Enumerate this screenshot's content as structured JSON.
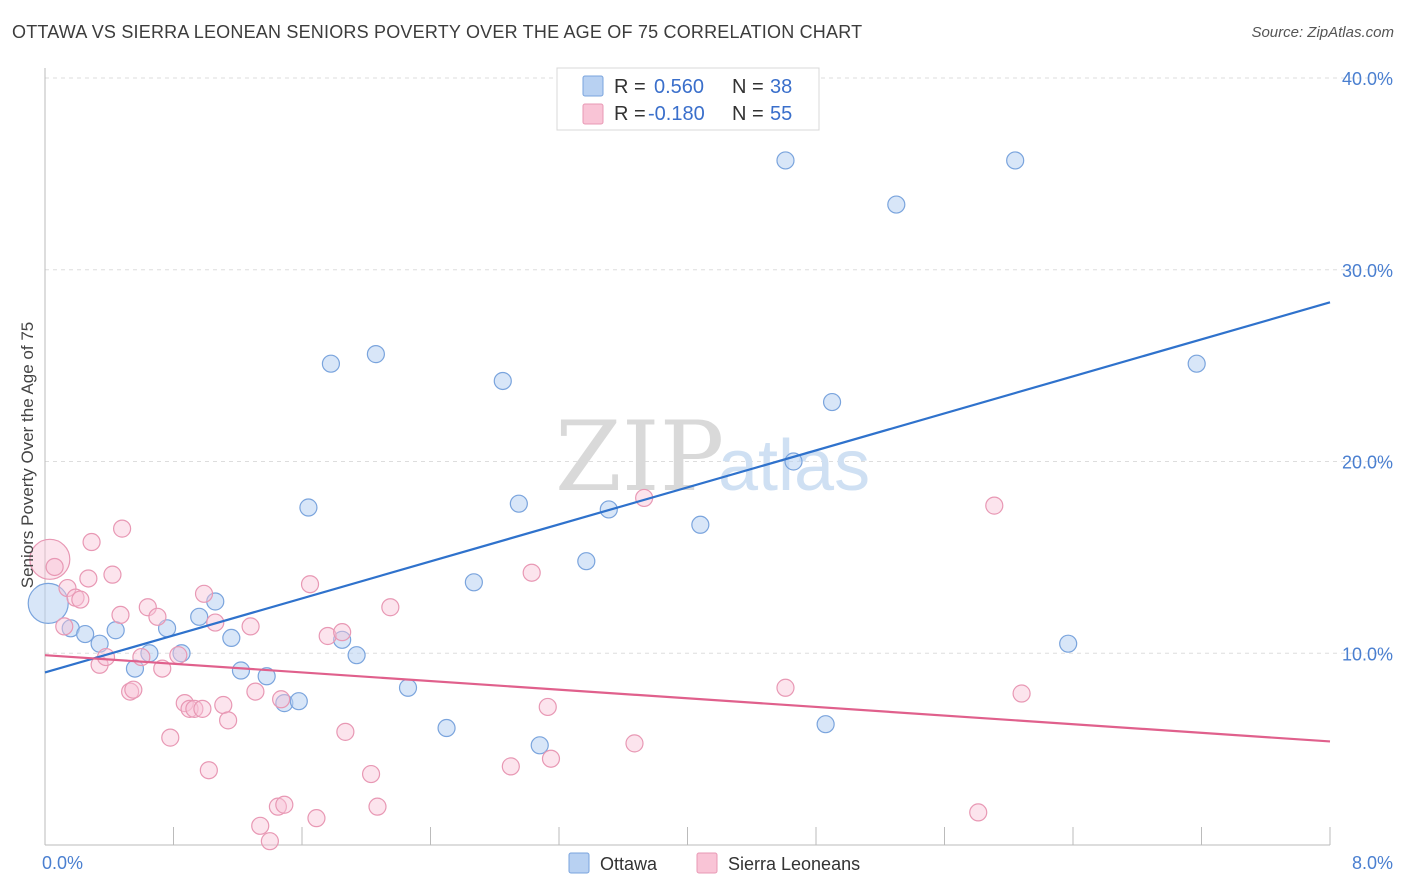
{
  "header": {
    "title": "OTTAWA VS SIERRA LEONEAN SENIORS POVERTY OVER THE AGE OF 75 CORRELATION CHART",
    "source": "Source: ZipAtlas.com"
  },
  "watermark": {
    "zip": "ZIP",
    "atlas": "atlas"
  },
  "legend": {
    "rows": [
      {
        "r_label": "R =",
        "r_value": "0.560",
        "n_label": "N =",
        "n_value": "38"
      },
      {
        "r_label": "R =",
        "r_value": "-0.180",
        "n_label": "N =",
        "n_value": "55"
      }
    ]
  },
  "bottom_legend": [
    "Ottawa",
    "Sierra Leoneans"
  ],
  "colors": {
    "ottawa_fill": "#b8d1f2",
    "ottawa_stroke": "#7aa4dd",
    "ottawa_line": "#2f72cc",
    "sierra_fill": "#f9c4d6",
    "sierra_stroke": "#e898b4",
    "sierra_line": "#e0608c",
    "grid": "#dddddd",
    "tick_text": "#4a7fd0"
  },
  "chart_data": {
    "type": "scatter",
    "title": "OTTAWA VS SIERRA LEONEAN SENIORS POVERTY OVER THE AGE OF 75 CORRELATION CHART",
    "xlabel": "",
    "ylabel": "Seniors Poverty Over the Age of 75",
    "xlim": [
      0,
      8
    ],
    "ylim": [
      0,
      40
    ],
    "x_tick_labels": [
      "0.0%",
      "8.0%"
    ],
    "y_ticks": [
      10,
      20,
      30,
      40
    ],
    "y_tick_labels": [
      "10.0%",
      "20.0%",
      "30.0%",
      "40.0%"
    ],
    "grid": true,
    "legend_position": "top-center",
    "series": [
      {
        "name": "Ottawa",
        "color": "#b8d1f2",
        "trend": {
          "x": [
            0,
            8
          ],
          "y": [
            9.0,
            28.3
          ]
        },
        "points": [
          {
            "x": 0.02,
            "y": 12.6,
            "big": true
          },
          {
            "x": 0.16,
            "y": 11.3
          },
          {
            "x": 0.25,
            "y": 11.0
          },
          {
            "x": 0.34,
            "y": 10.5
          },
          {
            "x": 0.44,
            "y": 11.2
          },
          {
            "x": 0.56,
            "y": 9.2
          },
          {
            "x": 0.65,
            "y": 10.0
          },
          {
            "x": 0.76,
            "y": 11.3
          },
          {
            "x": 0.85,
            "y": 10.0
          },
          {
            "x": 0.96,
            "y": 11.9
          },
          {
            "x": 1.06,
            "y": 12.7
          },
          {
            "x": 1.16,
            "y": 10.8
          },
          {
            "x": 1.22,
            "y": 9.1
          },
          {
            "x": 1.38,
            "y": 8.8
          },
          {
            "x": 1.49,
            "y": 7.4
          },
          {
            "x": 1.58,
            "y": 7.5
          },
          {
            "x": 1.64,
            "y": 17.6
          },
          {
            "x": 1.78,
            "y": 25.1
          },
          {
            "x": 1.85,
            "y": 10.7
          },
          {
            "x": 1.94,
            "y": 9.9
          },
          {
            "x": 2.06,
            "y": 25.6
          },
          {
            "x": 2.26,
            "y": 8.2
          },
          {
            "x": 2.5,
            "y": 6.1
          },
          {
            "x": 2.67,
            "y": 13.7
          },
          {
            "x": 2.85,
            "y": 24.2
          },
          {
            "x": 2.95,
            "y": 17.8
          },
          {
            "x": 3.08,
            "y": 5.2
          },
          {
            "x": 3.37,
            "y": 14.8
          },
          {
            "x": 3.51,
            "y": 17.5
          },
          {
            "x": 4.08,
            "y": 16.7
          },
          {
            "x": 4.61,
            "y": 35.7
          },
          {
            "x": 4.66,
            "y": 20.0
          },
          {
            "x": 4.86,
            "y": 6.3
          },
          {
            "x": 4.9,
            "y": 23.1
          },
          {
            "x": 5.3,
            "y": 33.4
          },
          {
            "x": 6.04,
            "y": 35.7
          },
          {
            "x": 6.37,
            "y": 10.5
          },
          {
            "x": 7.17,
            "y": 25.1
          }
        ]
      },
      {
        "name": "Sierra Leoneans",
        "color": "#f9c4d6",
        "trend": {
          "x": [
            0,
            8
          ],
          "y": [
            9.9,
            5.4
          ]
        },
        "points": [
          {
            "x": 0.03,
            "y": 14.9,
            "big": true
          },
          {
            "x": 0.06,
            "y": 14.5
          },
          {
            "x": 0.12,
            "y": 11.4
          },
          {
            "x": 0.14,
            "y": 13.4
          },
          {
            "x": 0.19,
            "y": 12.9
          },
          {
            "x": 0.22,
            "y": 12.8
          },
          {
            "x": 0.27,
            "y": 13.9
          },
          {
            "x": 0.29,
            "y": 15.8
          },
          {
            "x": 0.34,
            "y": 9.4
          },
          {
            "x": 0.38,
            "y": 9.8
          },
          {
            "x": 0.42,
            "y": 14.1
          },
          {
            "x": 0.47,
            "y": 12.0
          },
          {
            "x": 0.48,
            "y": 16.5
          },
          {
            "x": 0.53,
            "y": 8.0
          },
          {
            "x": 0.55,
            "y": 8.1
          },
          {
            "x": 0.6,
            "y": 9.8
          },
          {
            "x": 0.64,
            "y": 12.4
          },
          {
            "x": 0.7,
            "y": 11.9
          },
          {
            "x": 0.73,
            "y": 9.2
          },
          {
            "x": 0.78,
            "y": 5.6
          },
          {
            "x": 0.83,
            "y": 9.9
          },
          {
            "x": 0.87,
            "y": 7.4
          },
          {
            "x": 0.9,
            "y": 7.1
          },
          {
            "x": 0.93,
            "y": 7.1
          },
          {
            "x": 0.98,
            "y": 7.1
          },
          {
            "x": 0.99,
            "y": 13.1
          },
          {
            "x": 1.02,
            "y": 3.9
          },
          {
            "x": 1.06,
            "y": 11.6
          },
          {
            "x": 1.11,
            "y": 7.3
          },
          {
            "x": 1.14,
            "y": 6.5
          },
          {
            "x": 1.28,
            "y": 11.4
          },
          {
            "x": 1.31,
            "y": 8.0
          },
          {
            "x": 1.34,
            "y": 1.0
          },
          {
            "x": 1.4,
            "y": 0.2
          },
          {
            "x": 1.45,
            "y": 2.0
          },
          {
            "x": 1.47,
            "y": 7.6
          },
          {
            "x": 1.49,
            "y": 2.1
          },
          {
            "x": 1.65,
            "y": 13.6
          },
          {
            "x": 1.69,
            "y": 1.4
          },
          {
            "x": 1.76,
            "y": 10.9
          },
          {
            "x": 1.85,
            "y": 11.1
          },
          {
            "x": 1.87,
            "y": 5.9
          },
          {
            "x": 2.03,
            "y": 3.7
          },
          {
            "x": 2.07,
            "y": 2.0
          },
          {
            "x": 2.15,
            "y": 12.4
          },
          {
            "x": 2.9,
            "y": 4.1
          },
          {
            "x": 3.03,
            "y": 14.2
          },
          {
            "x": 3.13,
            "y": 7.2
          },
          {
            "x": 3.15,
            "y": 4.5
          },
          {
            "x": 3.67,
            "y": 5.3
          },
          {
            "x": 3.73,
            "y": 18.1
          },
          {
            "x": 4.61,
            "y": 8.2
          },
          {
            "x": 5.81,
            "y": 1.7
          },
          {
            "x": 5.91,
            "y": 17.7
          },
          {
            "x": 6.08,
            "y": 7.9
          }
        ]
      }
    ]
  }
}
